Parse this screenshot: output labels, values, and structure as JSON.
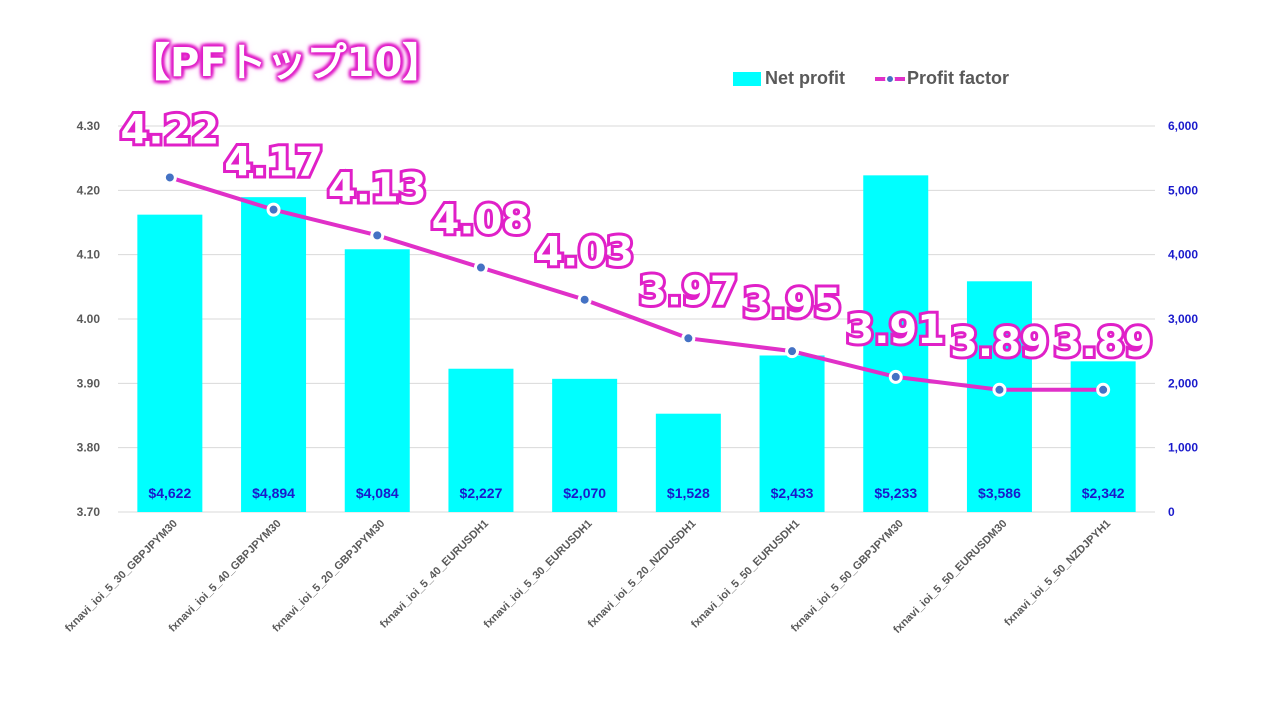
{
  "title": "【PFトップ10】",
  "colors": {
    "bar": "#00ffff",
    "line": "#e030c8",
    "marker_fill": "#4472c4",
    "marker_stroke": "#ffffff"
  },
  "chart_data": {
    "type": "bar+line",
    "categories": [
      "fxnavi_ioi_5_30_GBPJPYM30",
      "fxnavi_ioi_5_40_GBPJPYM30",
      "fxnavi_ioi_5_20_GBPJPYM30",
      "fxnavi_ioi_5_40_EURUSDH1",
      "fxnavi_ioi_5_30_EURUSDH1",
      "fxnavi_ioi_5_20_NZDUSDH1",
      "fxnavi_ioi_5_50_EURUSDH1",
      "fxnavi_ioi_5_50_GBPJPYM30",
      "fxnavi_ioi_5_50_EURUSDM30",
      "fxnavi_ioi_5_50_NZDJPYH1"
    ],
    "series": [
      {
        "name": "Net profit",
        "type": "bar",
        "axis": "right",
        "values": [
          4622,
          4894,
          4084,
          2227,
          2070,
          1528,
          2433,
          5233,
          3586,
          2342
        ],
        "labels": [
          "$4,622",
          "$4,894",
          "$4,084",
          "$2,227",
          "$2,070",
          "$1,528",
          "$2,433",
          "$5,233",
          "$3,586",
          "$2,342"
        ]
      },
      {
        "name": "Profit factor",
        "type": "line",
        "axis": "left",
        "values": [
          4.22,
          4.17,
          4.13,
          4.08,
          4.03,
          3.97,
          3.95,
          3.91,
          3.89,
          3.89
        ],
        "labels": [
          "4.22",
          "4.17",
          "4.13",
          "4.08",
          "4.03",
          "3.97",
          "3.95",
          "3.91",
          "3.89",
          "3.89"
        ]
      }
    ],
    "y_left": {
      "min": 3.7,
      "max": 4.3,
      "ticks": [
        "3.70",
        "3.80",
        "3.90",
        "4.00",
        "4.10",
        "4.20",
        "4.30"
      ]
    },
    "y_right": {
      "min": 0,
      "max": 6000,
      "ticks": [
        "0",
        "1,000",
        "2,000",
        "3,000",
        "4,000",
        "5,000",
        "6,000"
      ]
    },
    "grid": true,
    "legend_position": "top-right"
  }
}
